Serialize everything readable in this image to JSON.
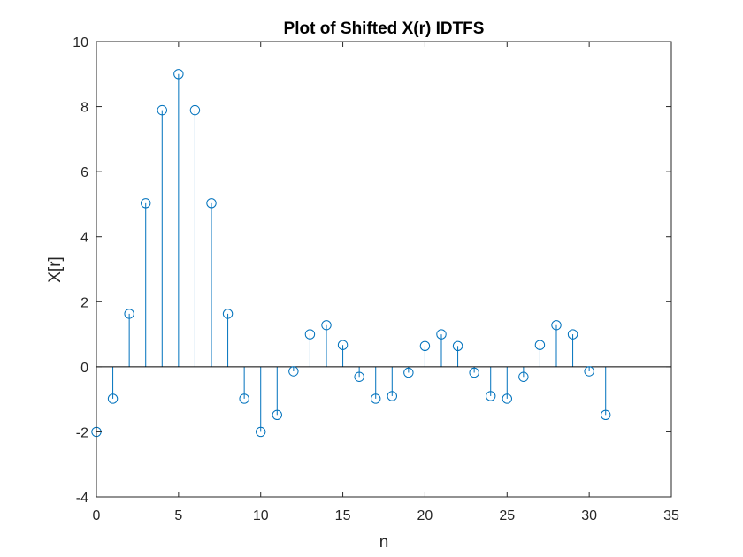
{
  "chart_data": {
    "type": "stem",
    "title": "Plot of Shifted X(r) IDTFS",
    "xlabel": "n",
    "ylabel": "X[r]",
    "xlim": [
      0,
      35
    ],
    "ylim": [
      -4,
      10
    ],
    "xticks": [
      0,
      5,
      10,
      15,
      20,
      25,
      30,
      35
    ],
    "yticks": [
      -4,
      -2,
      0,
      2,
      4,
      6,
      8,
      10
    ],
    "grid": false,
    "baseline": 0,
    "series": [
      {
        "x": [
          0,
          1,
          2,
          3,
          4,
          5,
          6,
          7,
          8,
          9,
          10,
          11,
          12,
          13,
          14,
          15,
          16,
          17,
          18,
          19,
          20,
          21,
          22,
          23,
          24,
          25,
          26,
          27,
          28,
          29,
          30,
          31
        ],
        "y": [
          -2.0,
          -0.98,
          1.63,
          5.03,
          7.89,
          9.0,
          7.89,
          5.03,
          1.63,
          -0.98,
          -2.0,
          -1.48,
          -0.14,
          1.0,
          1.28,
          0.67,
          -0.31,
          -0.98,
          -0.9,
          -0.18,
          0.64,
          1.0,
          0.64,
          -0.18,
          -0.9,
          -0.98,
          -0.31,
          0.67,
          1.28,
          1.0,
          -0.14,
          -1.48
        ],
        "color": "#0072BD",
        "marker": "circle"
      }
    ]
  }
}
